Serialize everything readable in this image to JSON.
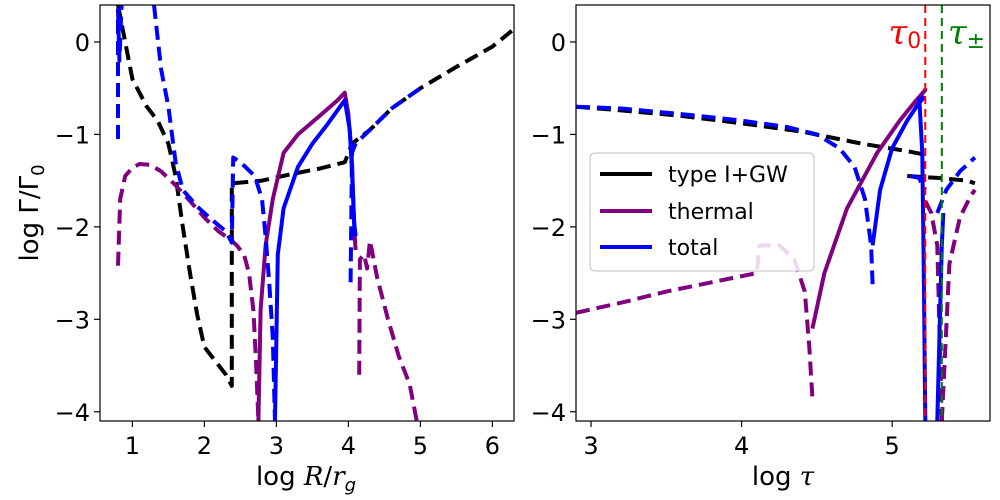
{
  "chart_data": [
    {
      "type": "line",
      "panel": "left",
      "xlabel": "log R/r_g",
      "xlabel_parts": {
        "prefix": "log",
        "var1": "R",
        "slash": "/",
        "var2": "r",
        "sub": "g"
      },
      "ylabel": "log Γ/Γ0",
      "ylabel_parts": {
        "prefix": "log",
        "gamma": "Γ/Γ",
        "sub": "0"
      },
      "xlim": [
        0.55,
        6.3
      ],
      "ylim": [
        -4.1,
        0.4
      ],
      "xticks": [
        1,
        2,
        3,
        4,
        5,
        6
      ],
      "yticks": [
        0,
        -1,
        -2,
        -3,
        -4
      ],
      "xtick_labels": [
        "1",
        "2",
        "3",
        "4",
        "5",
        "6"
      ],
      "ytick_labels": [
        "0",
        "−1",
        "−2",
        "−3",
        "−4"
      ],
      "series": [
        {
          "name": "type I+GW",
          "color": "#000000",
          "style": "dashed",
          "segments": [
            [
              [
                0.8,
                0.4
              ],
              [
                1.0,
                -0.4
              ],
              [
                1.2,
                -0.7
              ],
              [
                1.35,
                -0.85
              ],
              [
                1.5,
                -1.1
              ],
              [
                1.6,
                -1.45
              ],
              [
                1.7,
                -2.0
              ],
              [
                1.8,
                -2.5
              ],
              [
                1.9,
                -2.95
              ],
              [
                2.0,
                -3.3
              ],
              [
                2.15,
                -3.45
              ],
              [
                2.3,
                -3.6
              ],
              [
                2.38,
                -3.72
              ],
              [
                2.38,
                -1.53
              ],
              [
                2.8,
                -1.5
              ],
              [
                3.2,
                -1.43
              ],
              [
                3.6,
                -1.37
              ],
              [
                3.95,
                -1.3
              ],
              [
                4.05,
                -1.1
              ],
              [
                4.3,
                -0.95
              ],
              [
                4.6,
                -0.72
              ],
              [
                5.0,
                -0.5
              ],
              [
                5.5,
                -0.27
              ],
              [
                6.0,
                -0.05
              ],
              [
                6.3,
                0.14
              ]
            ]
          ]
        },
        {
          "name": "thermal",
          "color": "#800080",
          "style": "mixed",
          "segments": [
            [
              [
                0.8,
                -2.42
              ],
              [
                0.83,
                -1.7
              ],
              [
                0.9,
                -1.45
              ],
              [
                1.0,
                -1.36
              ],
              [
                1.1,
                -1.32
              ],
              [
                1.25,
                -1.33
              ],
              [
                1.4,
                -1.4
              ],
              [
                1.6,
                -1.55
              ],
              [
                1.8,
                -1.72
              ],
              [
                2.0,
                -1.9
              ],
              [
                2.2,
                -2.05
              ],
              [
                2.38,
                -2.15
              ],
              [
                2.45,
                -2.2
              ],
              [
                2.55,
                -2.3
              ],
              [
                2.62,
                -2.5
              ],
              [
                2.68,
                -2.9
              ],
              [
                2.72,
                -3.5
              ],
              [
                2.75,
                -4.1
              ]
            ]
          ],
          "solid_segments": [
            [
              [
                2.75,
                -4.1
              ],
              [
                2.78,
                -2.9
              ],
              [
                2.85,
                -2.2
              ],
              [
                2.95,
                -1.7
              ],
              [
                3.1,
                -1.2
              ],
              [
                3.3,
                -1.0
              ],
              [
                3.6,
                -0.8
              ],
              [
                3.85,
                -0.63
              ],
              [
                3.95,
                -0.55
              ],
              [
                4.0,
                -0.78
              ],
              [
                4.05,
                -1.3
              ],
              [
                4.08,
                -2.0
              ],
              [
                4.1,
                -2.25
              ]
            ]
          ],
          "dashed_tail": [
            [
              [
                4.15,
                -3.6
              ],
              [
                4.16,
                -2.35
              ],
              [
                4.22,
                -2.3
              ],
              [
                4.26,
                -2.45
              ],
              [
                4.3,
                -2.15
              ],
              [
                4.4,
                -2.55
              ],
              [
                4.55,
                -3.0
              ],
              [
                4.7,
                -3.4
              ],
              [
                4.85,
                -3.7
              ],
              [
                4.95,
                -4.1
              ]
            ]
          ]
        },
        {
          "name": "total",
          "color": "#0000ff",
          "style": "mixed",
          "segments": [
            [
              [
                0.8,
                -1.05
              ],
              [
                0.8,
                0.35
              ],
              [
                0.82,
                -0.2
              ],
              [
                0.85,
                0.4
              ]
            ],
            [
              [
                1.3,
                0.4
              ],
              [
                1.4,
                -0.3
              ],
              [
                1.5,
                -0.7
              ],
              [
                1.6,
                -1.3
              ],
              [
                1.7,
                -1.6
              ],
              [
                1.9,
                -1.78
              ],
              [
                2.1,
                -1.92
              ],
              [
                2.3,
                -2.05
              ],
              [
                2.38,
                -2.17
              ],
              [
                2.4,
                -1.25
              ],
              [
                2.5,
                -1.3
              ],
              [
                2.7,
                -1.45
              ],
              [
                2.8,
                -1.7
              ],
              [
                2.85,
                -2.1
              ],
              [
                2.9,
                -2.6
              ],
              [
                2.95,
                -3.2
              ],
              [
                2.98,
                -4.1
              ]
            ]
          ],
          "solid_segments": [
            [
              [
                2.98,
                -4.1
              ],
              [
                3.02,
                -2.3
              ],
              [
                3.1,
                -1.8
              ],
              [
                3.3,
                -1.35
              ],
              [
                3.5,
                -1.1
              ],
              [
                3.7,
                -0.9
              ],
              [
                3.95,
                -0.63
              ],
              [
                4.02,
                -0.95
              ],
              [
                4.05,
                -1.4
              ],
              [
                4.08,
                -1.95
              ],
              [
                4.1,
                -2.1
              ]
            ]
          ],
          "dashed_tail": [
            [
              [
                4.03,
                -2.6
              ],
              [
                4.05,
                -1.2
              ],
              [
                4.1,
                -1.1
              ],
              [
                4.3,
                -0.95
              ],
              [
                4.6,
                -0.72
              ],
              [
                5.0,
                -0.5
              ]
            ]
          ]
        }
      ]
    },
    {
      "type": "line",
      "panel": "right",
      "xlabel": "log τ",
      "xlabel_parts": {
        "prefix": "log",
        "var": "τ"
      },
      "xlim": [
        2.9,
        5.65
      ],
      "ylim": [
        -4.1,
        0.4
      ],
      "xticks": [
        3,
        4,
        5
      ],
      "yticks": [
        0,
        -1,
        -2,
        -3,
        -4
      ],
      "xtick_labels": [
        "3",
        "4",
        "5"
      ],
      "ytick_labels": [
        "0",
        "−1",
        "−2",
        "−3",
        "−4"
      ],
      "vlines": [
        {
          "x": 5.22,
          "color": "#ff0000",
          "label": "τ",
          "sub": "0"
        },
        {
          "x": 5.33,
          "color": "#008000",
          "label": "τ",
          "sub": "±"
        }
      ],
      "legend": {
        "position": "center-left",
        "entries": [
          "type I+GW",
          "thermal",
          "total"
        ]
      },
      "series": [
        {
          "name": "type I+GW",
          "color": "#000000",
          "style": "dashed",
          "segments": [
            [
              [
                2.9,
                -0.7
              ],
              [
                3.2,
                -0.74
              ],
              [
                3.6,
                -0.8
              ],
              [
                4.0,
                -0.88
              ],
              [
                4.4,
                -0.97
              ],
              [
                4.8,
                -1.1
              ],
              [
                5.1,
                -1.18
              ],
              [
                5.22,
                -1.22
              ]
            ],
            [
              [
                5.1,
                -1.45
              ],
              [
                5.3,
                -1.47
              ],
              [
                5.5,
                -1.5
              ],
              [
                5.55,
                -1.53
              ]
            ]
          ]
        },
        {
          "name": "thermal",
          "color": "#800080",
          "style": "mixed",
          "segments": [
            [
              [
                2.9,
                -2.93
              ],
              [
                3.2,
                -2.82
              ],
              [
                3.5,
                -2.7
              ],
              [
                3.8,
                -2.6
              ],
              [
                4.1,
                -2.5
              ],
              [
                4.12,
                -2.2
              ],
              [
                4.25,
                -2.2
              ],
              [
                4.35,
                -2.35
              ],
              [
                4.42,
                -2.7
              ],
              [
                4.45,
                -3.3
              ],
              [
                4.47,
                -3.85
              ]
            ],
            [
              [
                5.22,
                -1.72
              ],
              [
                5.26,
                -1.85
              ],
              [
                5.3,
                -2.2
              ],
              [
                5.33,
                -4.1
              ]
            ],
            [
              [
                5.33,
                -4.1
              ],
              [
                5.38,
                -2.4
              ],
              [
                5.45,
                -1.9
              ],
              [
                5.52,
                -1.67
              ],
              [
                5.55,
                -1.6
              ]
            ]
          ],
          "solid_segments": [
            [
              [
                4.47,
                -3.1
              ],
              [
                4.55,
                -2.5
              ],
              [
                4.7,
                -1.8
              ],
              [
                4.9,
                -1.2
              ],
              [
                5.05,
                -0.85
              ],
              [
                5.15,
                -0.65
              ],
              [
                5.22,
                -0.52
              ],
              [
                5.22,
                -0.5
              ]
            ]
          ]
        },
        {
          "name": "total",
          "color": "#0000ff",
          "style": "mixed",
          "segments": [
            [
              [
                2.9,
                -0.7
              ],
              [
                3.2,
                -0.72
              ],
              [
                3.6,
                -0.78
              ],
              [
                4.0,
                -0.85
              ],
              [
                4.3,
                -0.92
              ],
              [
                4.5,
                -1.0
              ],
              [
                4.65,
                -1.15
              ],
              [
                4.75,
                -1.35
              ],
              [
                4.82,
                -1.7
              ],
              [
                4.86,
                -2.2
              ],
              [
                4.87,
                -2.62
              ]
            ],
            [
              [
                5.12,
                -1.45
              ],
              [
                5.18,
                -1.47
              ],
              [
                5.2,
                -1.55
              ],
              [
                5.22,
                -1.6
              ]
            ],
            [
              [
                5.3,
                -1.85
              ],
              [
                5.36,
                -1.6
              ],
              [
                5.45,
                -1.4
              ],
              [
                5.55,
                -1.25
              ]
            ]
          ],
          "solid_segments": [
            [
              [
                4.87,
                -2.2
              ],
              [
                4.92,
                -1.6
              ],
              [
                5.0,
                -1.15
              ],
              [
                5.1,
                -0.85
              ],
              [
                5.17,
                -0.68
              ],
              [
                5.2,
                -0.62
              ],
              [
                5.21,
                -0.58
              ]
            ],
            [
              [
                5.18,
                -0.6
              ],
              [
                5.2,
                -1.2
              ],
              [
                5.21,
                -2.5
              ],
              [
                5.22,
                -4.1
              ]
            ],
            [
              [
                5.3,
                -4.1
              ],
              [
                5.33,
                -2.2
              ],
              [
                5.34,
                -1.85
              ]
            ]
          ]
        }
      ]
    }
  ],
  "legend_labels": {
    "black": "type I+GW",
    "purple": "thermal",
    "blue": "total"
  }
}
